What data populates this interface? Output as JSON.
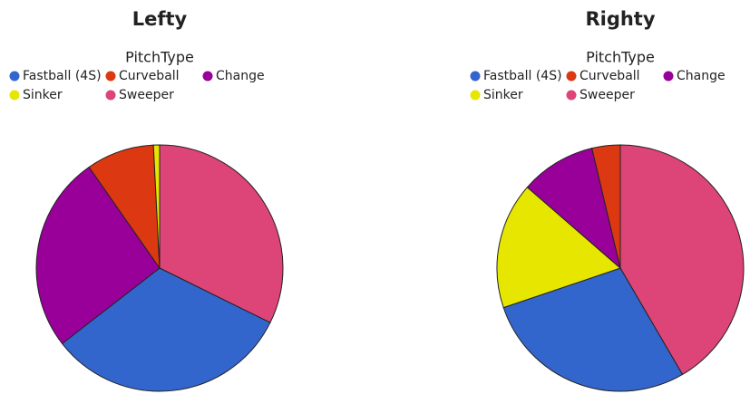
{
  "chart_data": [
    {
      "type": "pie",
      "title": "Lefty",
      "legend_title": "PitchType",
      "categories": [
        "Fastball (4S)",
        "Curveball",
        "Change",
        "Sinker",
        "Sweeper"
      ],
      "values": [
        32.2,
        8.9,
        25.8,
        0.8,
        32.3
      ],
      "colors": [
        "#3366cc",
        "#dc3912",
        "#990099",
        "#e6e600",
        "#dd4477"
      ]
    },
    {
      "type": "pie",
      "title": "Righty",
      "legend_title": "PitchType",
      "categories": [
        "Fastball (4S)",
        "Curveball",
        "Change",
        "Sinker",
        "Sweeper"
      ],
      "values": [
        28.2,
        3.7,
        9.9,
        16.6,
        41.6
      ],
      "colors": [
        "#3366cc",
        "#dc3912",
        "#990099",
        "#e6e600",
        "#dd4477"
      ]
    }
  ]
}
